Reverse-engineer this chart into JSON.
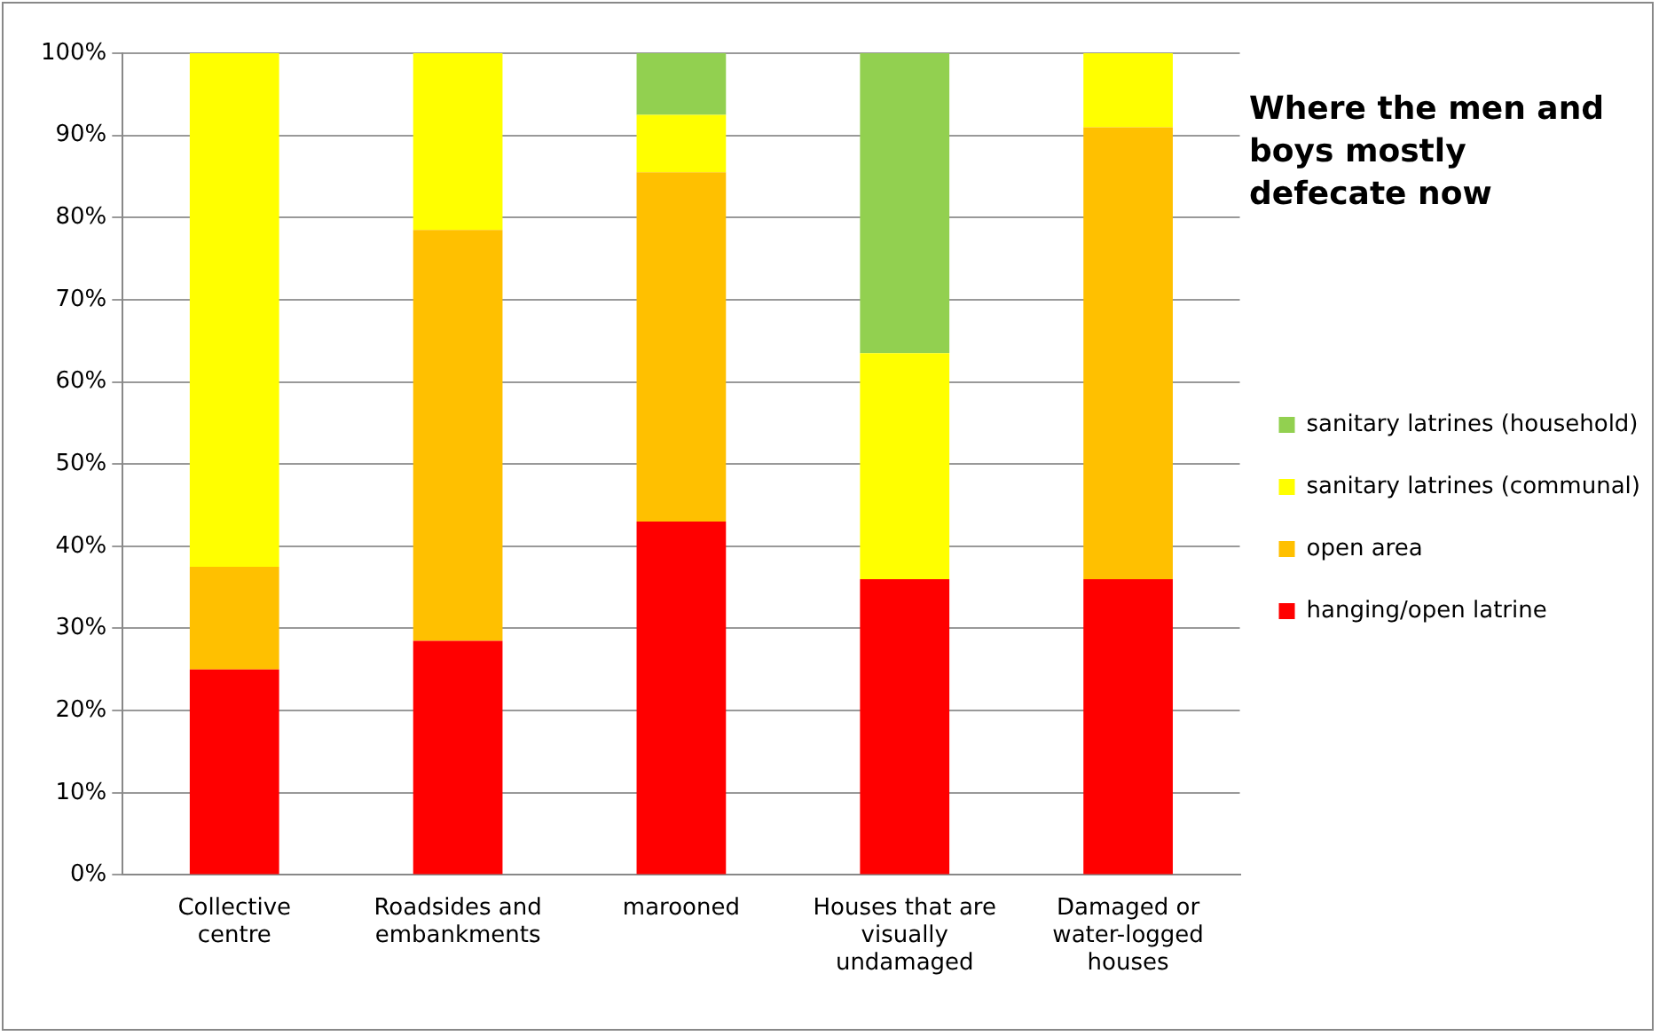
{
  "chart_data": {
    "type": "bar",
    "stacked": true,
    "title": "Where the men and boys mostly defecate now",
    "categories": [
      "Collective centre",
      "Roadsides and embankments",
      "marooned",
      "Houses that are visually undamaged",
      "Damaged or water-logged houses"
    ],
    "series": [
      {
        "name": "hanging/open latrine",
        "color": "#ff0000",
        "values": [
          25,
          28.5,
          43,
          36,
          36
        ]
      },
      {
        "name": "open area",
        "color": "#ffc000",
        "values": [
          12.5,
          50,
          42.5,
          0,
          55
        ]
      },
      {
        "name": "sanitary latrines (communal)",
        "color": "#ffff00",
        "values": [
          62.5,
          21.5,
          7,
          27.5,
          9
        ]
      },
      {
        "name": "sanitary latrines (household)",
        "color": "#92d050",
        "values": [
          0,
          0,
          7.5,
          36.5,
          0
        ]
      }
    ],
    "ylim": [
      0,
      100
    ],
    "yticks": [
      {
        "value": 0,
        "label": "0%"
      },
      {
        "value": 10,
        "label": "10%"
      },
      {
        "value": 20,
        "label": "20%"
      },
      {
        "value": 30,
        "label": "30%"
      },
      {
        "value": 40,
        "label": "40%"
      },
      {
        "value": 50,
        "label": "50%"
      },
      {
        "value": 60,
        "label": "60%"
      },
      {
        "value": 70,
        "label": "70%"
      },
      {
        "value": 80,
        "label": "80%"
      },
      {
        "value": 90,
        "label": "90%"
      },
      {
        "value": 100,
        "label": "100%"
      }
    ],
    "grid": "y",
    "legend": "right"
  }
}
